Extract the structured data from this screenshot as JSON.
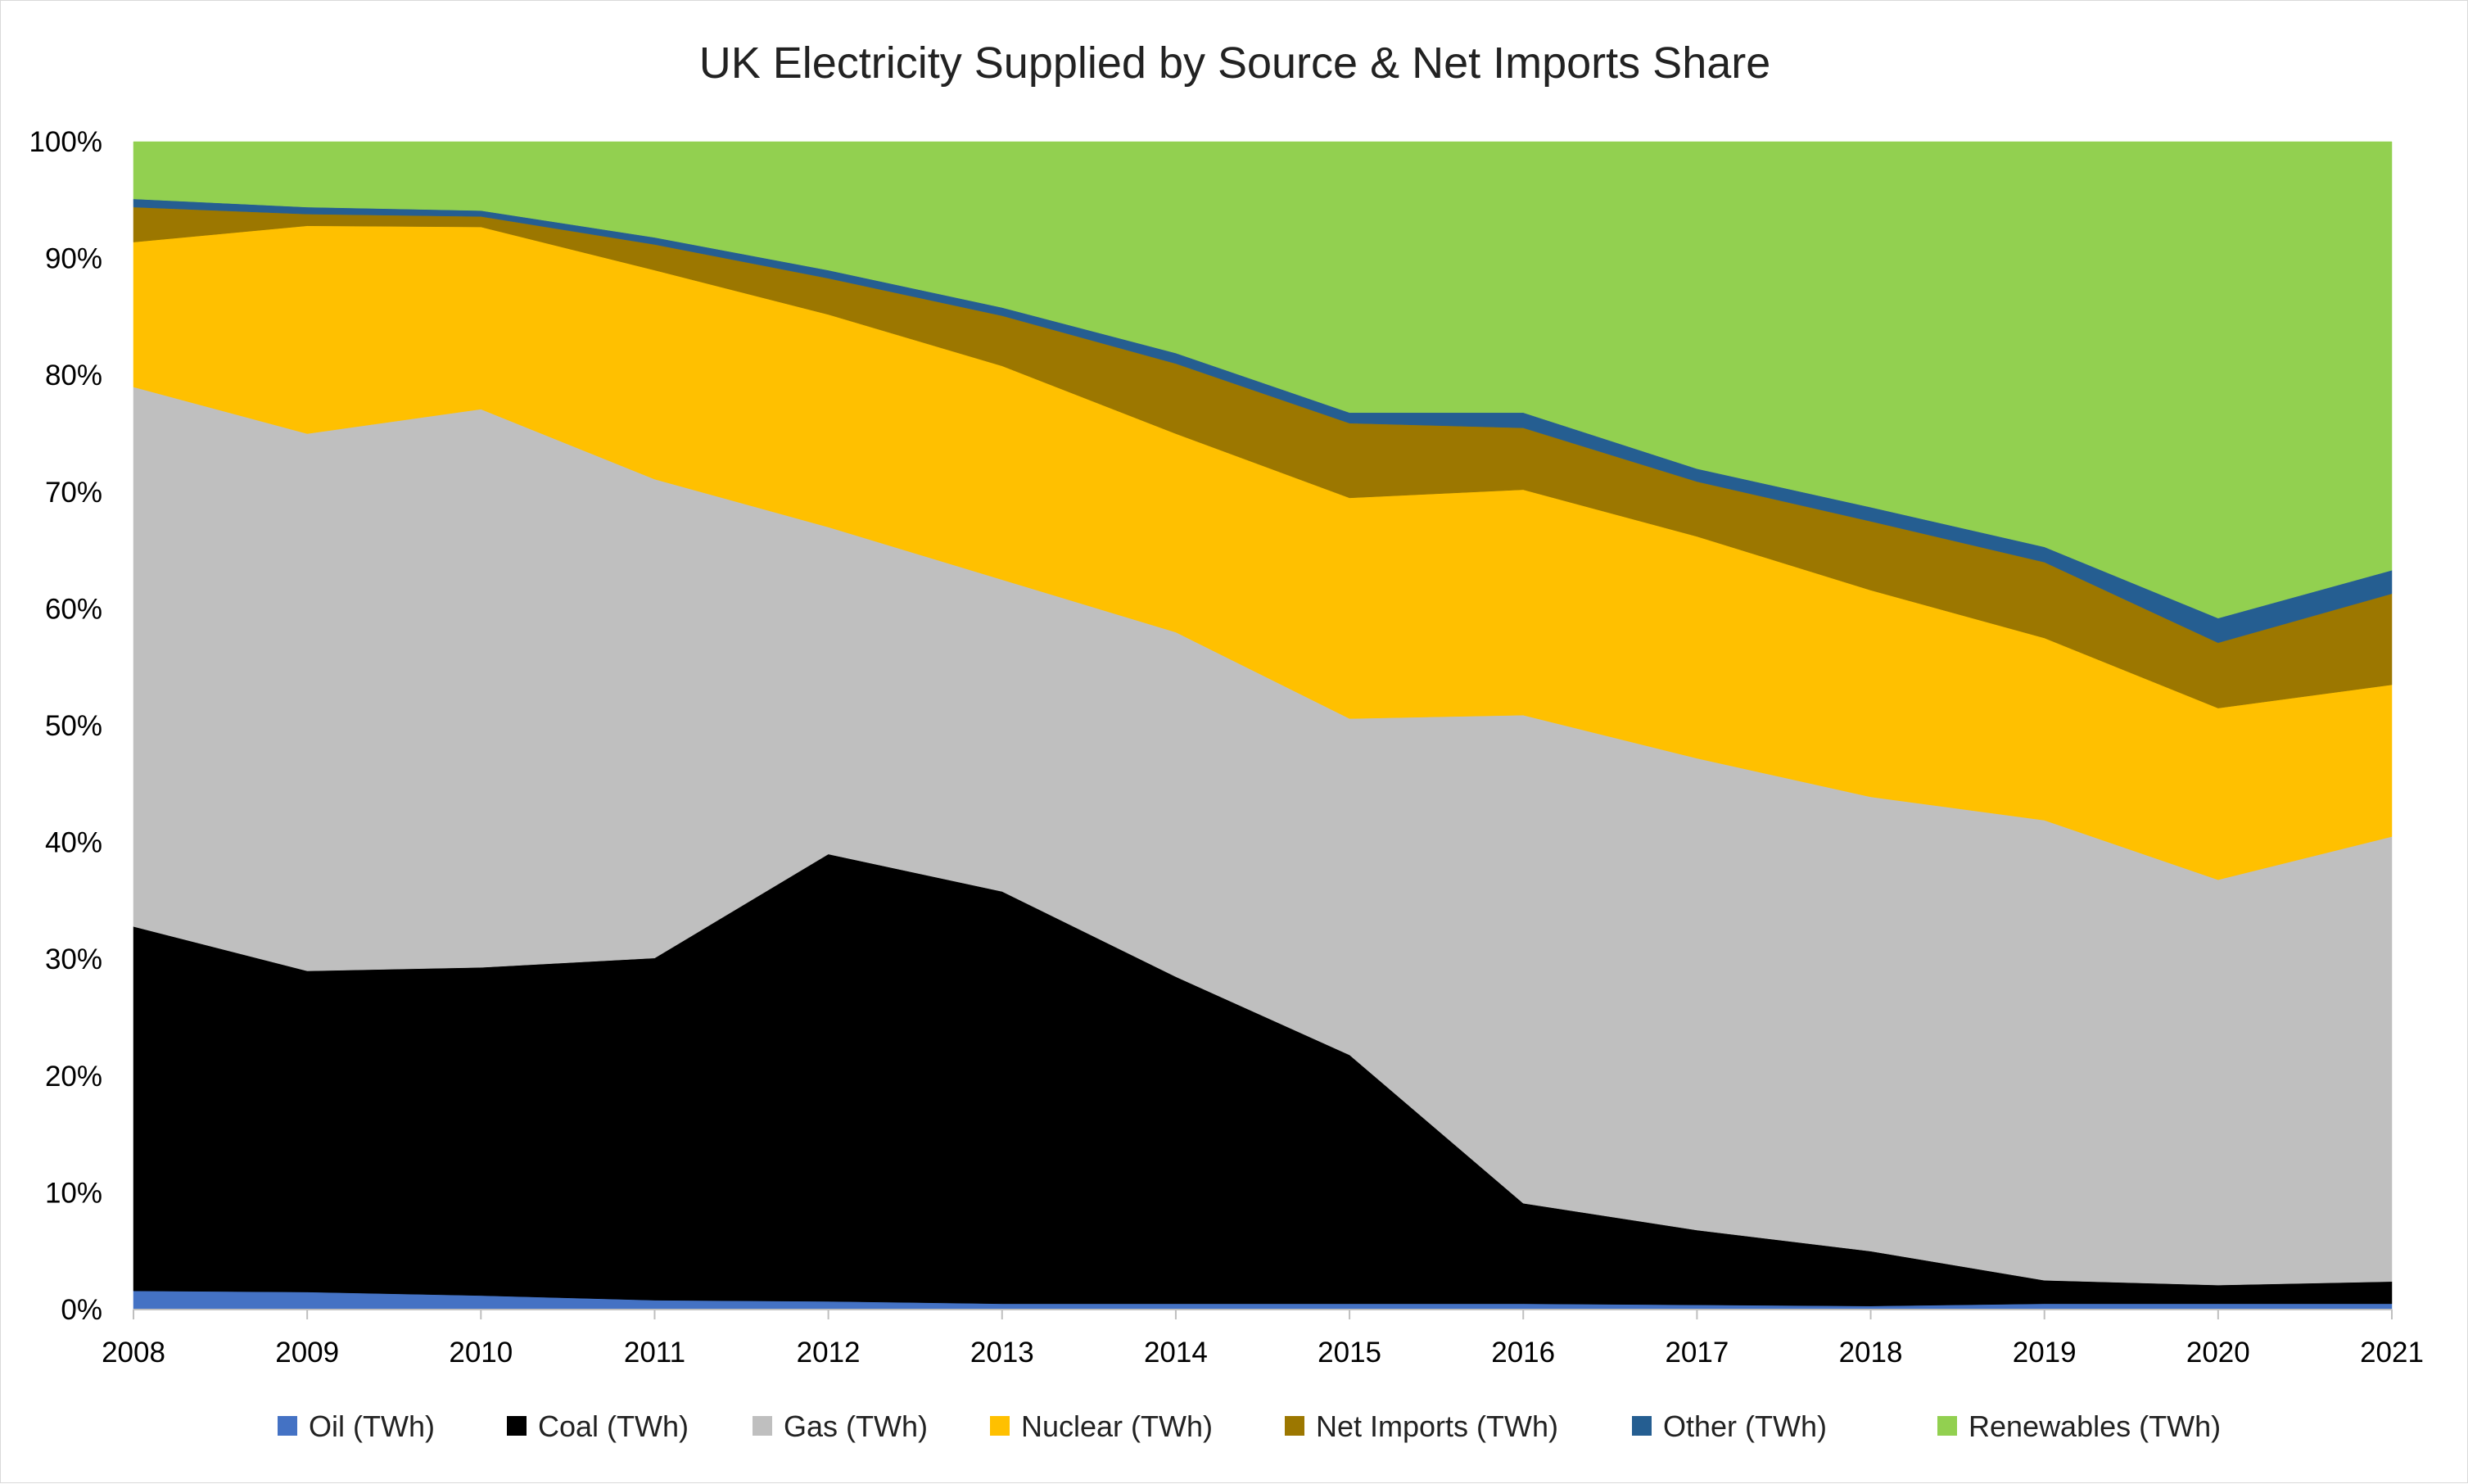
{
  "chart_data": {
    "type": "area",
    "stacking": "percent",
    "title": "UK Electricity Supplied by Source & Net Imports Share",
    "xlabel": "",
    "ylabel": "",
    "x": [
      "2008",
      "2009",
      "2010",
      "2011",
      "2012",
      "2013",
      "2014",
      "2015",
      "2016",
      "2017",
      "2018",
      "2019",
      "2020",
      "2021"
    ],
    "ylim": [
      0,
      100
    ],
    "yticks": [
      "0%",
      "10%",
      "20%",
      "30%",
      "40%",
      "50%",
      "60%",
      "70%",
      "80%",
      "90%",
      "100%"
    ],
    "grid": false,
    "legend_position": "bottom",
    "values_unit": "percent share",
    "series": [
      {
        "name": "Oil (TWh)",
        "color": "#4472C4",
        "values": [
          1.6,
          1.5,
          1.2,
          0.8,
          0.7,
          0.5,
          0.5,
          0.5,
          0.5,
          0.4,
          0.3,
          0.5,
          0.5,
          0.5
        ]
      },
      {
        "name": "Coal (TWh)",
        "color": "#000000",
        "values": [
          31.2,
          27.5,
          28.1,
          29.3,
          38.3,
          35.3,
          28.0,
          21.3,
          8.6,
          6.4,
          4.7,
          2.0,
          1.6,
          1.9
        ]
      },
      {
        "name": "Gas (TWh)",
        "color": "#BFBFBF",
        "values": [
          46.2,
          46.0,
          47.8,
          41.0,
          28.0,
          26.7,
          29.5,
          28.8,
          41.8,
          40.4,
          38.9,
          39.4,
          34.7,
          38.1
        ]
      },
      {
        "name": "Nuclear (TWh)",
        "color": "#FFC000",
        "values": [
          12.4,
          17.8,
          15.6,
          17.9,
          18.2,
          18.3,
          17.0,
          18.9,
          19.3,
          19.0,
          17.7,
          15.6,
          14.7,
          13.0
        ]
      },
      {
        "name": "Net Imports (TWh)",
        "color": "#9C7700",
        "values": [
          3.0,
          1.0,
          0.9,
          2.2,
          3.1,
          4.3,
          6.0,
          6.4,
          5.3,
          4.7,
          5.9,
          6.5,
          5.6,
          7.8
        ]
      },
      {
        "name": "Other (TWh)",
        "color": "#255E91",
        "values": [
          0.7,
          0.6,
          0.5,
          0.6,
          0.7,
          0.7,
          0.9,
          0.9,
          1.3,
          1.1,
          1.2,
          1.3,
          2.1,
          2.0
        ]
      },
      {
        "name": "Renewables (TWh)",
        "color": "#92D050",
        "values": [
          4.9,
          5.6,
          5.9,
          8.2,
          11.0,
          14.2,
          18.1,
          23.2,
          23.2,
          28.0,
          31.3,
          34.7,
          40.8,
          36.7
        ]
      }
    ]
  }
}
